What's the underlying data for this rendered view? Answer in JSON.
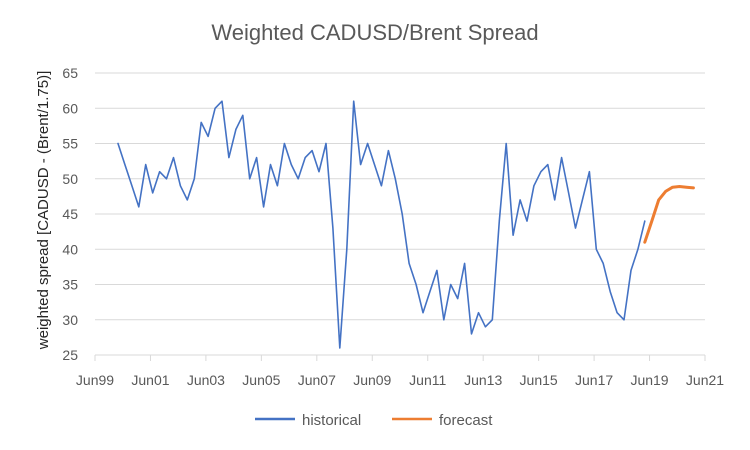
{
  "chart_data": {
    "type": "line",
    "title": "Weighted CADUSD/Brent Spread",
    "xlabel": "",
    "ylabel": "weighted spread [CADUSD - (Brent/1.75)]",
    "xlim": [
      1999.42,
      2021.42
    ],
    "ylim": [
      25,
      65
    ],
    "grid": true,
    "legend_position": "bottom",
    "y_ticks": [
      25,
      30,
      35,
      40,
      45,
      50,
      55,
      60,
      65
    ],
    "x_ticks": [
      {
        "value": 1999.42,
        "label": "Jun99"
      },
      {
        "value": 2001.42,
        "label": "Jun01"
      },
      {
        "value": 2003.42,
        "label": "Jun03"
      },
      {
        "value": 2005.42,
        "label": "Jun05"
      },
      {
        "value": 2007.42,
        "label": "Jun07"
      },
      {
        "value": 2009.42,
        "label": "Jun09"
      },
      {
        "value": 2011.42,
        "label": "Jun11"
      },
      {
        "value": 2013.42,
        "label": "Jun13"
      },
      {
        "value": 2015.42,
        "label": "Jun15"
      },
      {
        "value": 2017.42,
        "label": "Jun17"
      },
      {
        "value": 2019.42,
        "label": "Jun19"
      },
      {
        "value": 2021.42,
        "label": "Jun21"
      }
    ],
    "series": [
      {
        "name": "historical",
        "color": "#4472C4",
        "x": [
          2000.25,
          2000.5,
          2000.75,
          2001.0,
          2001.25,
          2001.5,
          2001.75,
          2002.0,
          2002.25,
          2002.5,
          2002.75,
          2003.0,
          2003.25,
          2003.5,
          2003.75,
          2004.0,
          2004.25,
          2004.5,
          2004.75,
          2005.0,
          2005.25,
          2005.5,
          2005.75,
          2006.0,
          2006.25,
          2006.5,
          2006.75,
          2007.0,
          2007.25,
          2007.5,
          2007.75,
          2008.0,
          2008.25,
          2008.5,
          2008.75,
          2009.0,
          2009.25,
          2009.5,
          2009.75,
          2010.0,
          2010.25,
          2010.5,
          2010.75,
          2011.0,
          2011.25,
          2011.5,
          2011.75,
          2012.0,
          2012.25,
          2012.5,
          2012.75,
          2013.0,
          2013.25,
          2013.5,
          2013.75,
          2014.0,
          2014.25,
          2014.5,
          2014.75,
          2015.0,
          2015.25,
          2015.5,
          2015.75,
          2016.0,
          2016.25,
          2016.5,
          2016.75,
          2017.0,
          2017.25,
          2017.5,
          2017.75,
          2018.0,
          2018.25,
          2018.5,
          2018.75,
          2019.0,
          2019.25
        ],
        "values": [
          55,
          52,
          49,
          46,
          52,
          48,
          51,
          50,
          53,
          49,
          47,
          50,
          58,
          56,
          60,
          61,
          53,
          57,
          59,
          50,
          53,
          46,
          52,
          49,
          55,
          52,
          50,
          53,
          54,
          51,
          55,
          43,
          26,
          40,
          61,
          52,
          55,
          52,
          49,
          54,
          50,
          45,
          38,
          35,
          31,
          34,
          37,
          30,
          35,
          33,
          38,
          28,
          31,
          29,
          30,
          44,
          55,
          42,
          47,
          44,
          49,
          51,
          52,
          47,
          53,
          48,
          43,
          47,
          51,
          40,
          38,
          34,
          31,
          30,
          37,
          40,
          44
        ]
      },
      {
        "name": "forecast",
        "color": "#ED7D31",
        "x": [
          2019.25,
          2019.5,
          2019.75,
          2020.0,
          2020.25,
          2020.5,
          2020.75,
          2021.0
        ],
        "values": [
          41,
          44,
          47,
          48.2,
          48.8,
          48.9,
          48.8,
          48.7
        ]
      }
    ]
  }
}
